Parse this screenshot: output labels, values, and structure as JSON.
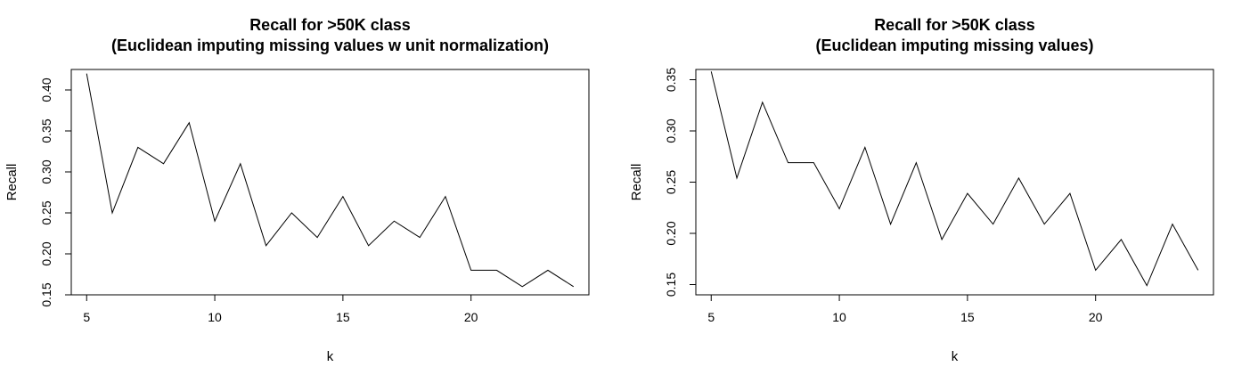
{
  "chart_data": [
    {
      "type": "line",
      "title": "Recall for >50K class",
      "subtitle": "(Euclidean imputing missing values w unit normalization)",
      "xlabel": "k",
      "ylabel": "Recall",
      "xlim": [
        4.4,
        24.6
      ],
      "ylim": [
        0.15,
        0.425
      ],
      "xticks": [
        5,
        10,
        15,
        20
      ],
      "yticks": [
        0.15,
        0.2,
        0.25,
        0.3,
        0.35,
        0.4
      ],
      "ytick_labels": [
        "0.15",
        "0.20",
        "0.25",
        "0.30",
        "0.35",
        "0.40"
      ],
      "x": [
        5,
        6,
        7,
        8,
        9,
        10,
        11,
        12,
        13,
        14,
        15,
        16,
        17,
        18,
        19,
        20,
        21,
        22,
        23,
        24
      ],
      "series": [
        {
          "values": [
            0.42,
            0.25,
            0.33,
            0.31,
            0.36,
            0.24,
            0.31,
            0.21,
            0.25,
            0.22,
            0.27,
            0.21,
            0.24,
            0.22,
            0.27,
            0.18,
            0.18,
            0.16,
            0.18,
            0.16
          ]
        }
      ],
      "grid": false,
      "box": true,
      "line_color": "#000000"
    },
    {
      "type": "line",
      "title": "Recall for >50K class",
      "subtitle": "(Euclidean imputing missing values)",
      "xlabel": "k",
      "ylabel": "Recall",
      "xlim": [
        4.4,
        24.6
      ],
      "ylim": [
        0.14,
        0.36
      ],
      "xticks": [
        5,
        10,
        15,
        20
      ],
      "yticks": [
        0.15,
        0.2,
        0.25,
        0.3,
        0.35
      ],
      "ytick_labels": [
        "0.15",
        "0.20",
        "0.25",
        "0.30",
        "0.35"
      ],
      "x": [
        5,
        6,
        7,
        8,
        9,
        10,
        11,
        12,
        13,
        14,
        15,
        16,
        17,
        18,
        19,
        20,
        21,
        22,
        23,
        24
      ],
      "series": [
        {
          "values": [
            0.358,
            0.254,
            0.328,
            0.269,
            0.269,
            0.224,
            0.284,
            0.209,
            0.269,
            0.194,
            0.239,
            0.209,
            0.254,
            0.209,
            0.239,
            0.164,
            0.194,
            0.149,
            0.209,
            0.164
          ]
        }
      ],
      "grid": false,
      "box": true,
      "line_color": "#000000"
    }
  ]
}
